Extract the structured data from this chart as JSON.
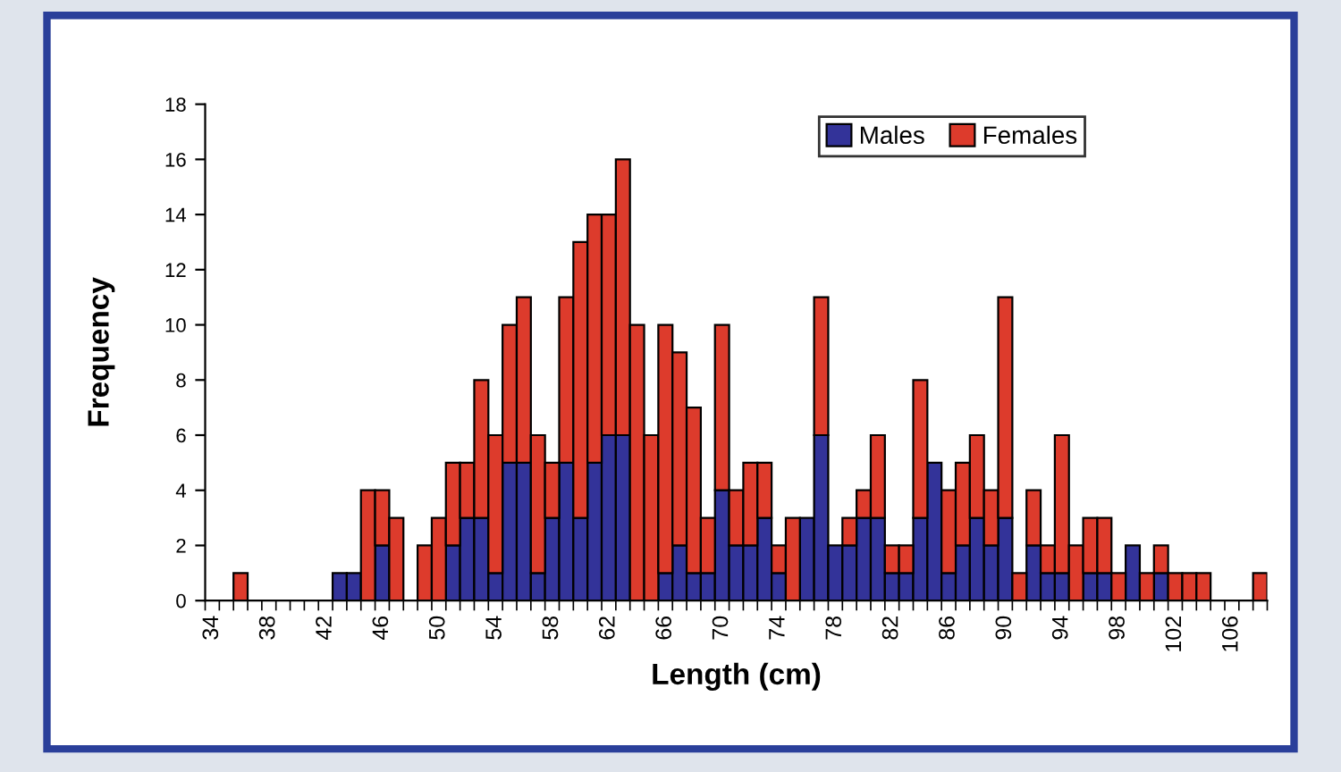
{
  "chart_data": {
    "type": "bar",
    "stacked": true,
    "xlabel": "Length (cm)",
    "ylabel": "Frequency",
    "categories": [
      "34",
      null,
      null,
      null,
      "38",
      null,
      null,
      null,
      "42",
      null,
      null,
      null,
      "46",
      null,
      null,
      null,
      "50",
      null,
      null,
      null,
      "54",
      null,
      null,
      null,
      "58",
      null,
      null,
      null,
      "62",
      null,
      null,
      null,
      "66",
      null,
      null,
      null,
      "70",
      null,
      null,
      null,
      "74",
      null,
      null,
      null,
      "78",
      null,
      null,
      null,
      "82",
      null,
      null,
      null,
      "86",
      null,
      null,
      null,
      "90",
      null,
      null,
      null,
      "94",
      null,
      null,
      null,
      "98",
      null,
      null,
      null,
      "102",
      null,
      null,
      null,
      "106",
      null,
      null
    ],
    "series": [
      {
        "name": "Males",
        "color": "#333399",
        "values": [
          0,
          0,
          0,
          0,
          0,
          0,
          0,
          0,
          0,
          1,
          1,
          0,
          2,
          0,
          0,
          0,
          0,
          2,
          3,
          3,
          1,
          5,
          5,
          1,
          3,
          5,
          3,
          5,
          6,
          6,
          0,
          0,
          1,
          2,
          1,
          1,
          4,
          2,
          2,
          3,
          1,
          0,
          3,
          6,
          2,
          2,
          3,
          3,
          1,
          1,
          3,
          5,
          1,
          2,
          3,
          2,
          3,
          0,
          2,
          1,
          1,
          0,
          1,
          1,
          0,
          2,
          0,
          1,
          0,
          0,
          0,
          0,
          0,
          0,
          0
        ]
      },
      {
        "name": "Females",
        "color": "#dd3b2c",
        "values": [
          0,
          0,
          1,
          0,
          0,
          0,
          0,
          0,
          0,
          0,
          0,
          4,
          2,
          3,
          0,
          2,
          3,
          3,
          2,
          5,
          5,
          5,
          6,
          5,
          2,
          6,
          10,
          9,
          8,
          10,
          10,
          6,
          9,
          7,
          6,
          2,
          6,
          2,
          3,
          2,
          1,
          3,
          0,
          5,
          0,
          1,
          1,
          3,
          1,
          1,
          5,
          0,
          3,
          3,
          3,
          2,
          8,
          1,
          2,
          1,
          5,
          2,
          2,
          2,
          1,
          0,
          1,
          1,
          1,
          1,
          1,
          0,
          0,
          0,
          1
        ]
      }
    ],
    "ylim": [
      0,
      18
    ],
    "yticks": [
      0,
      2,
      4,
      6,
      8,
      10,
      12,
      14,
      16,
      18
    ],
    "grid": false,
    "legend": "top right"
  }
}
